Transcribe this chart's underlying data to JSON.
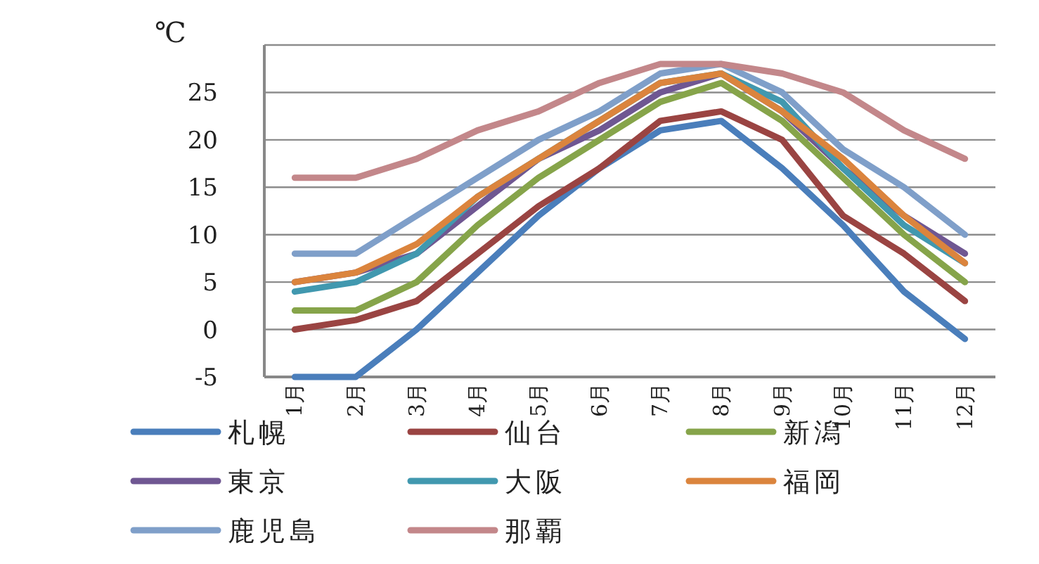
{
  "chart_data": {
    "type": "line",
    "ylabel": "℃",
    "categories": [
      "1月",
      "2月",
      "3月",
      "4月",
      "5月",
      "6月",
      "7月",
      "8月",
      "9月",
      "10月",
      "11月",
      "12月"
    ],
    "ylim": [
      -5,
      30
    ],
    "yticks": [
      -5,
      0,
      5,
      10,
      15,
      20,
      25,
      {
        "value": 30,
        "label": null
      }
    ],
    "grid": "y",
    "legend": "bottom",
    "marker": "none",
    "line_style": "solid",
    "series": [
      {
        "name": "札幌",
        "color": "#4a7ebb",
        "values": [
          -5,
          -5,
          0,
          6,
          12,
          17,
          21,
          22,
          17,
          11,
          4,
          -1
        ]
      },
      {
        "name": "仙台",
        "color": "#9a4442",
        "values": [
          0,
          1,
          3,
          8,
          13,
          17,
          22,
          23,
          20,
          12,
          8,
          3
        ]
      },
      {
        "name": "新潟",
        "color": "#86a44a",
        "values": [
          2,
          2,
          5,
          11,
          16,
          20,
          24,
          26,
          22,
          16,
          10,
          5
        ]
      },
      {
        "name": "東京",
        "color": "#6f5792",
        "values": [
          5,
          6,
          8,
          13,
          18,
          21,
          25,
          27,
          23,
          17,
          12,
          8
        ]
      },
      {
        "name": "大阪",
        "color": "#4198af",
        "values": [
          4,
          5,
          8,
          14,
          18,
          22,
          26,
          27,
          24,
          17,
          11,
          7
        ]
      },
      {
        "name": "福岡",
        "color": "#db843d",
        "values": [
          5,
          6,
          9,
          14,
          18,
          22,
          26,
          27,
          23,
          18,
          12,
          7
        ]
      },
      {
        "name": "鹿児島",
        "color": "#7f9fc9",
        "values": [
          8,
          8,
          12,
          16,
          20,
          23,
          27,
          28,
          25,
          19,
          15,
          10
        ]
      },
      {
        "name": "那覇",
        "color": "#c3878a",
        "values": [
          16,
          16,
          18,
          21,
          23,
          26,
          28,
          28,
          27,
          25,
          21,
          18
        ]
      }
    ]
  }
}
